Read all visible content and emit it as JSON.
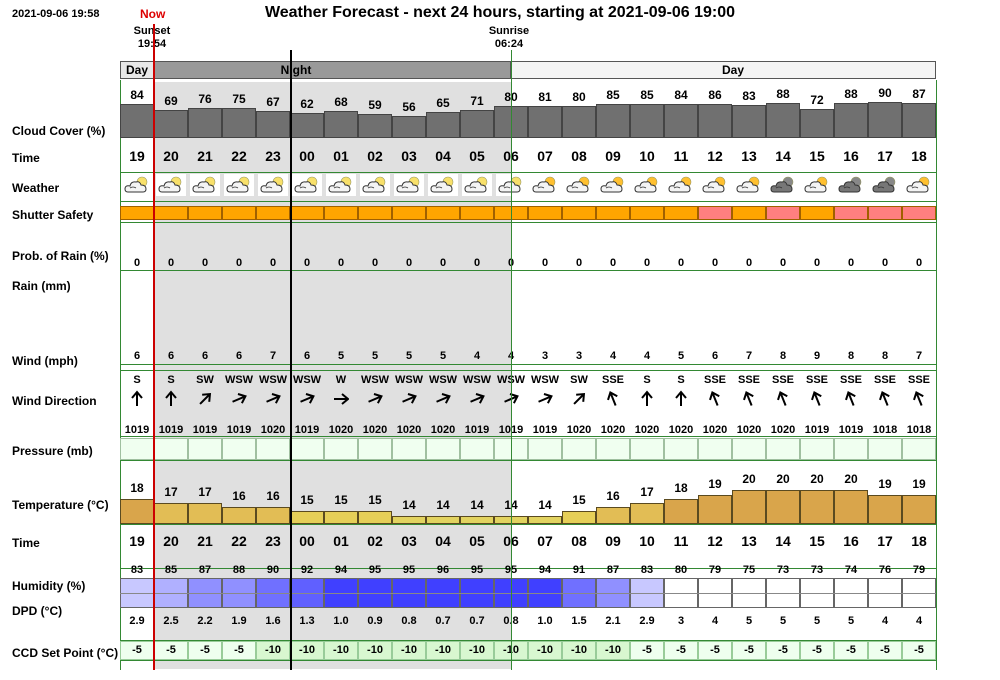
{
  "header": {
    "timestamp": "2021-09-06 19:58",
    "now_label": "Now",
    "title": "Weather Forecast - next 24 hours, starting at 2021-09-06 19:00",
    "sunset_label": "Sunset",
    "sunset_time": "19:54",
    "sunrise_label": "Sunrise",
    "sunrise_time": "06:24"
  },
  "periods": {
    "day_label": "Day",
    "night_label": "Night"
  },
  "labels": {
    "cloud_cover": "Cloud Cover (%)",
    "time": "Time",
    "weather": "Weather",
    "shutter_safety": "Shutter Safety",
    "prob_rain": "Prob. of Rain (%)",
    "rain": "Rain (mm)",
    "wind": "Wind (mph)",
    "wind_direction": "Wind Direction",
    "pressure": "Pressure (mb)",
    "temperature": "Temperature (°C)",
    "time2": "Time",
    "humidity": "Humidity (%)",
    "dpd": "DPD (°C)",
    "ccd": "CCD Set Point (°C)"
  },
  "hours": [
    "19",
    "20",
    "21",
    "22",
    "23",
    "00",
    "01",
    "02",
    "03",
    "04",
    "05",
    "06",
    "07",
    "08",
    "09",
    "10",
    "11",
    "12",
    "13",
    "14",
    "15",
    "16",
    "17",
    "18"
  ],
  "cloud_cover": [
    "84",
    "69",
    "76",
    "75",
    "67",
    "62",
    "68",
    "59",
    "56",
    "65",
    "71",
    "80",
    "81",
    "80",
    "85",
    "85",
    "84",
    "86",
    "83",
    "88",
    "72",
    "88",
    "90",
    "87"
  ],
  "weather_icons": [
    "partly-cloudy-night-icon",
    "partly-cloudy-night-icon",
    "partly-cloudy-night-icon",
    "partly-cloudy-night-icon",
    "partly-cloudy-night-icon",
    "partly-cloudy-night-icon",
    "partly-cloudy-night-icon",
    "partly-cloudy-night-icon",
    "partly-cloudy-night-icon",
    "partly-cloudy-night-icon",
    "partly-cloudy-night-icon",
    "partly-cloudy-night-icon",
    "partly-cloudy-day-icon",
    "partly-cloudy-day-icon",
    "partly-cloudy-day-icon",
    "partly-cloudy-day-icon",
    "partly-cloudy-day-icon",
    "partly-cloudy-day-icon",
    "partly-cloudy-day-icon",
    "overcast-icon",
    "partly-cloudy-day-icon",
    "overcast-icon",
    "overcast-icon",
    "partly-cloudy-day-icon"
  ],
  "shutter_safety": [
    "orange",
    "orange",
    "orange",
    "orange",
    "orange",
    "orange",
    "orange",
    "orange",
    "orange",
    "orange",
    "orange",
    "orange",
    "orange",
    "orange",
    "orange",
    "orange",
    "orange",
    "red",
    "orange",
    "red",
    "orange",
    "red",
    "red",
    "red"
  ],
  "prob_rain": [
    "0",
    "0",
    "0",
    "0",
    "0",
    "0",
    "0",
    "0",
    "0",
    "0",
    "0",
    "0",
    "0",
    "0",
    "0",
    "0",
    "0",
    "0",
    "0",
    "0",
    "0",
    "0",
    "0",
    "0"
  ],
  "wind_speed": [
    "6",
    "6",
    "6",
    "6",
    "7",
    "6",
    "5",
    "5",
    "5",
    "5",
    "4",
    "4",
    "3",
    "3",
    "4",
    "4",
    "5",
    "6",
    "7",
    "8",
    "9",
    "8",
    "8",
    "7"
  ],
  "wind_dir": [
    "S",
    "S",
    "SW",
    "WSW",
    "WSW",
    "WSW",
    "W",
    "WSW",
    "WSW",
    "WSW",
    "WSW",
    "WSW",
    "WSW",
    "SW",
    "SSE",
    "S",
    "S",
    "SSE",
    "SSE",
    "SSE",
    "SSE",
    "SSE",
    "SSE",
    "SSE"
  ],
  "pressure": [
    "1019",
    "1019",
    "1019",
    "1019",
    "1020",
    "1019",
    "1020",
    "1020",
    "1020",
    "1020",
    "1019",
    "1019",
    "1019",
    "1020",
    "1020",
    "1020",
    "1020",
    "1020",
    "1020",
    "1020",
    "1019",
    "1019",
    "1018",
    "1018"
  ],
  "temperature": [
    "18",
    "17",
    "17",
    "16",
    "16",
    "15",
    "15",
    "15",
    "14",
    "14",
    "14",
    "14",
    "14",
    "15",
    "16",
    "17",
    "18",
    "19",
    "20",
    "20",
    "20",
    "20",
    "19",
    "19"
  ],
  "humidity": [
    "83",
    "85",
    "87",
    "88",
    "90",
    "92",
    "94",
    "95",
    "95",
    "96",
    "95",
    "95",
    "94",
    "91",
    "87",
    "83",
    "80",
    "79",
    "75",
    "73",
    "73",
    "74",
    "76",
    "79"
  ],
  "dpd": [
    "2.9",
    "2.5",
    "2.2",
    "1.9",
    "1.6",
    "1.3",
    "1.0",
    "0.9",
    "0.8",
    "0.7",
    "0.7",
    "0.8",
    "1.0",
    "1.5",
    "2.1",
    "2.9",
    "3",
    "4",
    "5",
    "5",
    "5",
    "5",
    "4",
    "4"
  ],
  "ccd": [
    "-5",
    "-5",
    "-5",
    "-5",
    "-10",
    "-10",
    "-10",
    "-10",
    "-10",
    "-10",
    "-10",
    "-10",
    "-10",
    "-10",
    "-10",
    "-5",
    "-5",
    "-5",
    "-5",
    "-5",
    "-5",
    "-5",
    "-5",
    "-5"
  ],
  "colors": {
    "orange": "#ffa500",
    "red": "#ff7f7f",
    "night": "#e0e0e0",
    "cloud": "#707070",
    "grid_green": "#338833",
    "now_line": "#cc0000"
  }
}
